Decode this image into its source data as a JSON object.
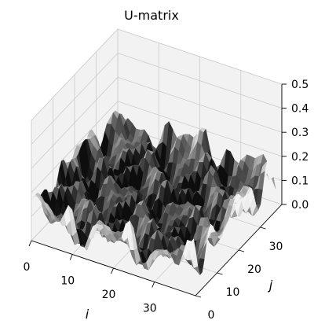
{
  "chart_data": {
    "type": "surface",
    "title": "U-matrix",
    "xlabel": "i",
    "ylabel": "j",
    "zlabel": "",
    "xlim": [
      0,
      40
    ],
    "ylim": [
      0,
      40
    ],
    "zlim": [
      0.0,
      0.5
    ],
    "x_ticks": [
      "0",
      "10",
      "20",
      "30"
    ],
    "y_ticks": [
      "0",
      "10",
      "20",
      "30"
    ],
    "z_ticks": [
      "0.0",
      "0.1",
      "0.2",
      "0.3",
      "0.4",
      "0.5"
    ],
    "grid": true,
    "colormap": "gray",
    "pane_color": "#f2f2f2",
    "grid_color": "#cccccc",
    "surface_note": "40x40 grid, heights mostly 0.02–0.20, peaks near edges"
  }
}
